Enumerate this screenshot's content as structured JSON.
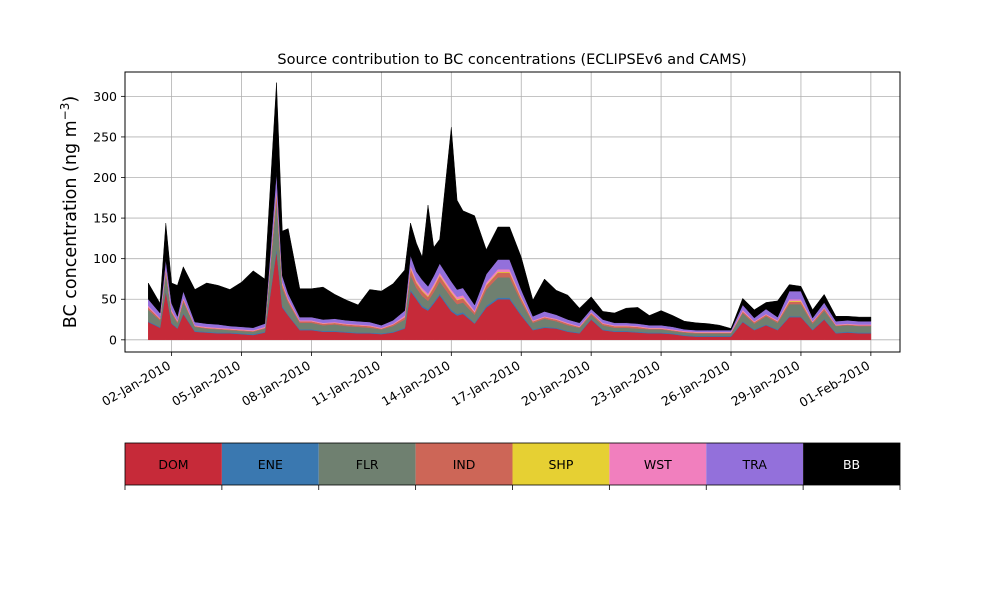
{
  "chart_data": {
    "type": "area",
    "stacked": true,
    "title": "Source contribution to BC concentrations (ECLIPSEv6 and CAMS)",
    "ylabel": "BC concentration (ng m",
    "ylabel_sup": "−3",
    "ylabel_close": ")",
    "xlabel": "",
    "ylim": [
      -15,
      330
    ],
    "yticks": [
      0,
      50,
      100,
      150,
      200,
      250,
      300
    ],
    "grid": true,
    "x": [
      "2010-01-01",
      "2010-01-01T12",
      "2010-01-01T18",
      "2010-01-02",
      "2010-01-02T06",
      "2010-01-02T12",
      "2010-01-03",
      "2010-01-03T12",
      "2010-01-04",
      "2010-01-04T12",
      "2010-01-05",
      "2010-01-05T12",
      "2010-01-06",
      "2010-01-06T12",
      "2010-01-06T18",
      "2010-01-07",
      "2010-01-07T12",
      "2010-01-08",
      "2010-01-08T12",
      "2010-01-09",
      "2010-01-09T12",
      "2010-01-10",
      "2010-01-10T12",
      "2010-01-11",
      "2010-01-11T12",
      "2010-01-12",
      "2010-01-12T06",
      "2010-01-12T12",
      "2010-01-12T18",
      "2010-01-13",
      "2010-01-13T06",
      "2010-01-13T12",
      "2010-01-14",
      "2010-01-14T06",
      "2010-01-14T12",
      "2010-01-15",
      "2010-01-15T12",
      "2010-01-16",
      "2010-01-16T12",
      "2010-01-17",
      "2010-01-17T12",
      "2010-01-18",
      "2010-01-18T12",
      "2010-01-19",
      "2010-01-19T12",
      "2010-01-20",
      "2010-01-20T12",
      "2010-01-21",
      "2010-01-21T12",
      "2010-01-22",
      "2010-01-22T12",
      "2010-01-23",
      "2010-01-23T12",
      "2010-01-24",
      "2010-01-24T12",
      "2010-01-25",
      "2010-01-25T12",
      "2010-01-26",
      "2010-01-26T12",
      "2010-01-27",
      "2010-01-27T12",
      "2010-01-28",
      "2010-01-28T12",
      "2010-01-29",
      "2010-01-29T12",
      "2010-01-30",
      "2010-01-30T12",
      "2010-01-31",
      "2010-01-31T12",
      "2010-02-01"
    ],
    "series": [
      {
        "name": "DOM",
        "color": "#c62a39",
        "values": [
          22,
          15,
          60,
          20,
          14,
          32,
          10,
          9,
          8,
          8,
          7,
          6,
          9,
          110,
          40,
          30,
          12,
          12,
          10,
          10,
          9,
          8,
          8,
          7,
          9,
          14,
          60,
          50,
          40,
          36,
          45,
          55,
          35,
          30,
          32,
          20,
          40,
          50,
          50,
          30,
          12,
          15,
          14,
          10,
          8,
          25,
          12,
          10,
          10,
          9,
          8,
          8,
          7,
          5,
          4,
          4,
          4,
          4,
          22,
          12,
          18,
          12,
          28,
          28,
          12,
          25,
          8,
          9,
          8,
          8
        ]
      },
      {
        "name": "ENE",
        "color": "#3a78b0",
        "values": [
          1,
          1,
          2,
          1,
          1,
          1,
          1,
          1,
          1,
          1,
          1,
          1,
          1,
          3,
          2,
          1,
          1,
          1,
          1,
          1,
          1,
          1,
          1,
          1,
          1,
          1,
          2,
          2,
          2,
          2,
          2,
          2,
          2,
          2,
          2,
          1,
          2,
          2,
          2,
          2,
          1,
          1,
          1,
          1,
          1,
          1,
          1,
          1,
          1,
          1,
          1,
          1,
          1,
          1,
          1,
          1,
          1,
          1,
          1,
          1,
          1,
          1,
          1,
          1,
          1,
          1,
          1,
          1,
          1,
          1
        ]
      },
      {
        "name": "FLR",
        "color": "#6f8070",
        "values": [
          14,
          8,
          20,
          12,
          6,
          14,
          5,
          4,
          4,
          3,
          3,
          3,
          4,
          60,
          22,
          15,
          8,
          8,
          7,
          8,
          7,
          7,
          6,
          5,
          7,
          10,
          18,
          12,
          12,
          10,
          12,
          15,
          15,
          12,
          12,
          10,
          20,
          25,
          25,
          15,
          8,
          10,
          8,
          7,
          6,
          5,
          5,
          4,
          4,
          4,
          4,
          4,
          3,
          3,
          3,
          3,
          3,
          3,
          10,
          7,
          10,
          8,
          15,
          15,
          7,
          10,
          8,
          8,
          8,
          8
        ]
      },
      {
        "name": "IND",
        "color": "#cd6657",
        "values": [
          3,
          2,
          4,
          2,
          2,
          3,
          1,
          1,
          1,
          1,
          1,
          1,
          1,
          10,
          4,
          3,
          2,
          2,
          2,
          2,
          2,
          2,
          2,
          1,
          2,
          3,
          8,
          6,
          6,
          5,
          6,
          7,
          6,
          5,
          5,
          3,
          5,
          6,
          6,
          4,
          2,
          2,
          2,
          2,
          1,
          2,
          2,
          2,
          2,
          2,
          1,
          1,
          1,
          1,
          1,
          1,
          1,
          1,
          2,
          2,
          2,
          2,
          3,
          3,
          2,
          3,
          1,
          1,
          1,
          1
        ]
      },
      {
        "name": "SHP",
        "color": "#e6d033",
        "values": [
          0,
          0,
          1,
          0,
          0,
          0,
          0,
          0,
          0,
          0,
          0,
          0,
          0,
          1,
          1,
          0,
          0,
          0,
          0,
          0,
          0,
          0,
          0,
          0,
          0,
          0,
          1,
          1,
          1,
          1,
          1,
          1,
          1,
          1,
          1,
          0,
          1,
          1,
          1,
          1,
          0,
          0,
          0,
          0,
          0,
          0,
          0,
          0,
          0,
          0,
          0,
          0,
          0,
          0,
          0,
          0,
          0,
          0,
          0,
          0,
          0,
          0,
          1,
          1,
          0,
          0,
          0,
          0,
          0,
          0
        ]
      },
      {
        "name": "WST",
        "color": "#f17fbe",
        "values": [
          2,
          1,
          2,
          2,
          1,
          2,
          1,
          1,
          1,
          1,
          1,
          1,
          1,
          3,
          2,
          2,
          1,
          1,
          1,
          1,
          1,
          1,
          1,
          1,
          1,
          2,
          3,
          3,
          3,
          3,
          3,
          3,
          3,
          3,
          3,
          2,
          3,
          3,
          3,
          2,
          1,
          1,
          1,
          1,
          1,
          1,
          1,
          1,
          1,
          1,
          1,
          1,
          1,
          1,
          1,
          1,
          1,
          1,
          2,
          1,
          1,
          1,
          2,
          2,
          1,
          1,
          1,
          1,
          1,
          1
        ]
      },
      {
        "name": "TRA",
        "color": "#9370db",
        "values": [
          8,
          6,
          10,
          8,
          5,
          8,
          4,
          4,
          4,
          3,
          3,
          3,
          4,
          20,
          8,
          6,
          4,
          4,
          4,
          4,
          4,
          4,
          4,
          3,
          4,
          6,
          12,
          10,
          10,
          9,
          10,
          11,
          10,
          9,
          9,
          7,
          10,
          12,
          12,
          8,
          5,
          6,
          5,
          4,
          4,
          4,
          4,
          3,
          3,
          3,
          3,
          3,
          3,
          2,
          2,
          2,
          2,
          2,
          6,
          4,
          6,
          4,
          10,
          10,
          4,
          6,
          4,
          4,
          4,
          4
        ]
      },
      {
        "name": "BB",
        "color": "#000000",
        "values": [
          20,
          12,
          45,
          25,
          38,
          30,
          40,
          50,
          48,
          45,
          55,
          70,
          55,
          110,
          55,
          80,
          35,
          35,
          40,
          30,
          25,
          20,
          40,
          42,
          45,
          50,
          40,
          35,
          28,
          100,
          35,
          30,
          190,
          110,
          95,
          110,
          30,
          40,
          40,
          40,
          20,
          40,
          30,
          30,
          18,
          15,
          10,
          12,
          18,
          20,
          12,
          18,
          14,
          10,
          9,
          8,
          6,
          2,
          8,
          10,
          8,
          20,
          8,
          6,
          10,
          10,
          6,
          5,
          5,
          5
        ]
      }
    ]
  },
  "xticks": [
    {
      "date": "2010-01-02",
      "label": "02-Jan-2010"
    },
    {
      "date": "2010-01-05",
      "label": "05-Jan-2010"
    },
    {
      "date": "2010-01-08",
      "label": "08-Jan-2010"
    },
    {
      "date": "2010-01-11",
      "label": "11-Jan-2010"
    },
    {
      "date": "2010-01-14",
      "label": "14-Jan-2010"
    },
    {
      "date": "2010-01-17",
      "label": "17-Jan-2010"
    },
    {
      "date": "2010-01-20",
      "label": "20-Jan-2010"
    },
    {
      "date": "2010-01-23",
      "label": "23-Jan-2010"
    },
    {
      "date": "2010-01-26",
      "label": "26-Jan-2010"
    },
    {
      "date": "2010-01-29",
      "label": "29-Jan-2010"
    },
    {
      "date": "2010-02-01",
      "label": "01-Feb-2010"
    }
  ],
  "legend": {
    "placement": "below",
    "items": [
      {
        "label": "DOM",
        "color": "#c62a39",
        "text_color": "#000000"
      },
      {
        "label": "ENE",
        "color": "#3a78b0",
        "text_color": "#000000"
      },
      {
        "label": "FLR",
        "color": "#6f8070",
        "text_color": "#000000"
      },
      {
        "label": "IND",
        "color": "#cd6657",
        "text_color": "#000000"
      },
      {
        "label": "SHP",
        "color": "#e6d033",
        "text_color": "#000000"
      },
      {
        "label": "WST",
        "color": "#f17fbe",
        "text_color": "#000000"
      },
      {
        "label": "TRA",
        "color": "#9370db",
        "text_color": "#000000"
      },
      {
        "label": "BB",
        "color": "#000000",
        "text_color": "#ffffff"
      }
    ]
  }
}
